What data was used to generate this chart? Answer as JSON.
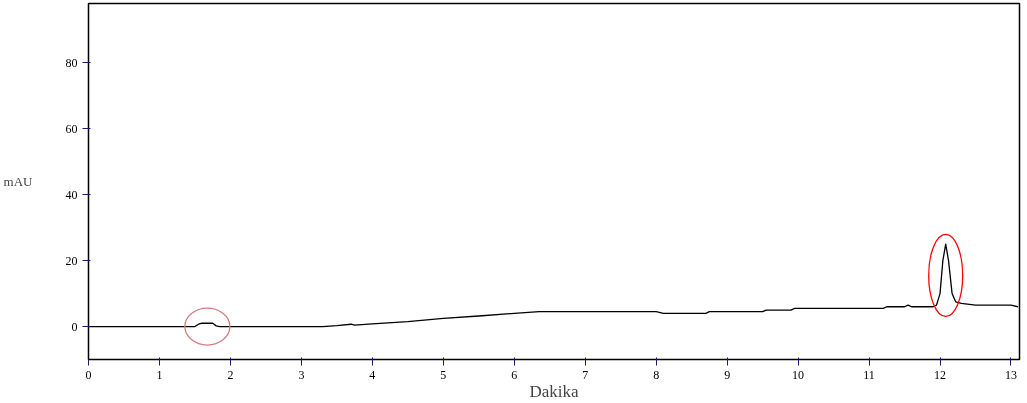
{
  "chart_data": {
    "type": "line",
    "xlabel": "Dakika",
    "ylabel": "mAU",
    "xlim": [
      0,
      13.12
    ],
    "ylim": [
      -10,
      98
    ],
    "xticks": [
      0,
      1,
      2,
      3,
      4,
      5,
      6,
      7,
      8,
      9,
      10,
      11,
      12,
      13
    ],
    "yticks": [
      0,
      20,
      40,
      60,
      80
    ],
    "grid": false,
    "series": [
      {
        "color": "#000000",
        "x": [
          0,
          1.5,
          1.55,
          1.6,
          1.75,
          1.8,
          1.85,
          3.3,
          3.5,
          3.7,
          3.75,
          4,
          4.5,
          5,
          5.5,
          6,
          6.35,
          7,
          8,
          8.1,
          8.7,
          8.75,
          9.5,
          9.55,
          9.9,
          9.95,
          11.2,
          11.25,
          11.5,
          11.55,
          11.6,
          11.9,
          11.95,
          12.0,
          12.04,
          12.08,
          12.12,
          12.17,
          12.22,
          12.3,
          12.5,
          13,
          13.1
        ],
        "values": [
          0,
          0,
          0.7,
          1,
          1,
          0.2,
          0,
          0,
          0.3,
          0.7,
          0.4,
          0.8,
          1.5,
          2.5,
          3.2,
          4,
          4.5,
          4.5,
          4.5,
          4,
          4,
          4.5,
          4.5,
          5,
          5,
          5.5,
          5.5,
          6,
          6,
          6.5,
          6,
          6,
          6.5,
          10,
          20,
          25,
          20,
          10,
          7.5,
          7,
          6.5,
          6.5,
          6
        ]
      }
    ]
  }
}
